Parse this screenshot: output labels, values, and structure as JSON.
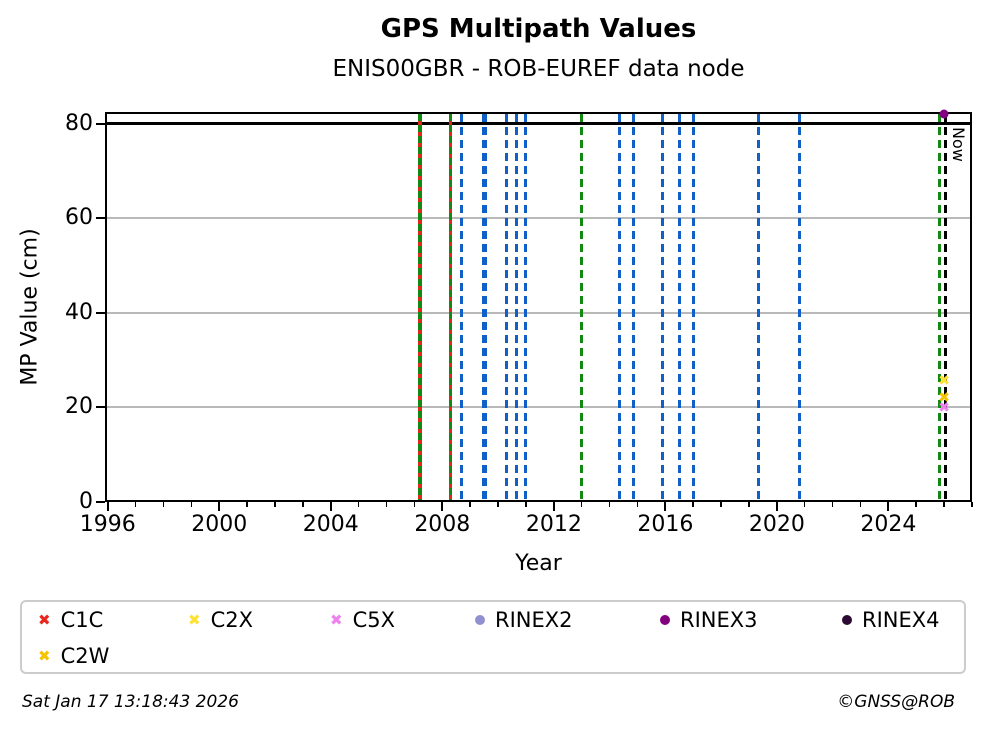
{
  "footer": {
    "timestamp": "Sat Jan 17 13:18:43 2026",
    "credit": "©GNSS@ROB"
  },
  "chart_data": {
    "type": "scatter",
    "title": "GPS Multipath Values",
    "subtitle": "ENIS00GBR - ROB-EUREF data node",
    "xlabel": "Year",
    "ylabel": "MP Value (cm)",
    "xlim": [
      1995.9,
      2027.0
    ],
    "ylim": [
      0,
      82.5
    ],
    "x_major_ticks": [
      1996,
      2000,
      2004,
      2008,
      2012,
      2016,
      2020,
      2024
    ],
    "x_minor_step": 1,
    "y_ticks": [
      0,
      20,
      40,
      60,
      80
    ],
    "grid_y": [
      20,
      40,
      60
    ],
    "grid_on": true,
    "hline": {
      "value": 80,
      "color": "#000000"
    },
    "now_marker": {
      "label": "Now",
      "year": 2026.05
    },
    "event_lines": [
      {
        "year": 2007.2,
        "style": "green-red"
      },
      {
        "year": 2008.3,
        "style": "green-red"
      },
      {
        "year": 2008.7,
        "style": "blue-dashed"
      },
      {
        "year": 2009.5,
        "style": "blue-dashed",
        "width": 5
      },
      {
        "year": 2010.3,
        "style": "blue-dashed"
      },
      {
        "year": 2010.65,
        "style": "blue-dashed"
      },
      {
        "year": 2011.0,
        "style": "blue-dashed"
      },
      {
        "year": 2013.0,
        "style": "green-dashed"
      },
      {
        "year": 2014.35,
        "style": "blue-dashed"
      },
      {
        "year": 2014.85,
        "style": "blue-dashed"
      },
      {
        "year": 2015.9,
        "style": "blue-dashed"
      },
      {
        "year": 2016.5,
        "style": "blue-dashed"
      },
      {
        "year": 2017.0,
        "style": "blue-dashed"
      },
      {
        "year": 2019.35,
        "style": "blue-dashed"
      },
      {
        "year": 2020.8,
        "style": "blue-dashed"
      },
      {
        "year": 2025.85,
        "style": "green-dashed"
      },
      {
        "year": 2026.05,
        "style": "black-dashed"
      }
    ],
    "markers": [
      {
        "series": "RINEX3",
        "year": 2026.0,
        "value": 82.0,
        "marker": "dot",
        "color": "#800080"
      },
      {
        "series": "C2X",
        "year": 2026.0,
        "value": 25.6,
        "marker": "x",
        "color": "#ffe135"
      },
      {
        "series": "C2W",
        "year": 2026.0,
        "value": 21.9,
        "marker": "x",
        "color": "#f5c400"
      },
      {
        "series": "C5X",
        "year": 2026.0,
        "value": 19.9,
        "marker": "x",
        "color": "#ee82ee"
      }
    ],
    "legend": {
      "position": "bottom",
      "entries": [
        {
          "label": "C1C",
          "marker": "x",
          "color": "#e8281e"
        },
        {
          "label": "C2X",
          "marker": "x",
          "color": "#ffe135"
        },
        {
          "label": "C5X",
          "marker": "x",
          "color": "#ee82ee"
        },
        {
          "label": "RINEX2",
          "marker": "dot",
          "color": "#9090ce"
        },
        {
          "label": "RINEX3",
          "marker": "dot",
          "color": "#800080"
        },
        {
          "label": "RINEX4",
          "marker": "dot",
          "color": "#2d0a33"
        },
        {
          "label": "C2W",
          "marker": "x",
          "color": "#f5c400"
        }
      ]
    },
    "colors": {
      "blue": "#1060c8",
      "green": "#128a12",
      "red": "#e02818",
      "black": "#000000",
      "grid": "#b9b9b9"
    }
  }
}
